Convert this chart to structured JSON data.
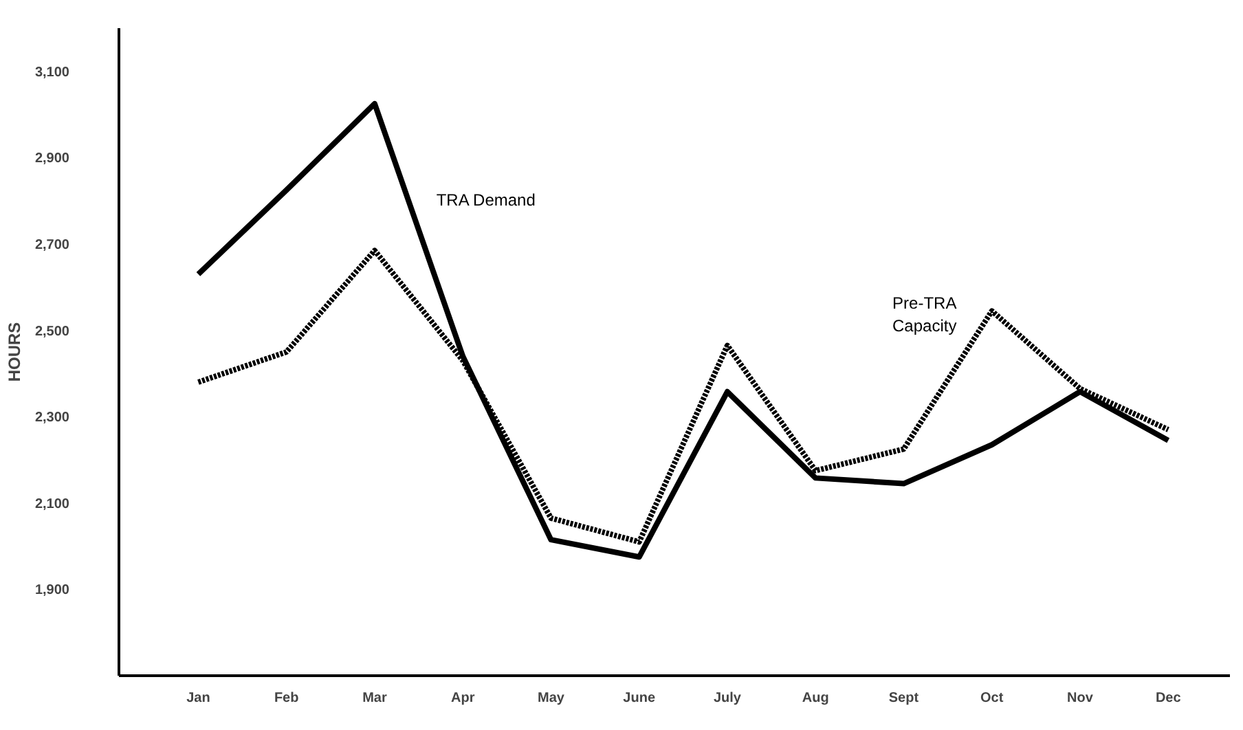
{
  "chart_data": {
    "type": "line",
    "ylabel": "HOURS",
    "categories": [
      "Jan",
      "Feb",
      "Mar",
      "Apr",
      "May",
      "June",
      "July",
      "Aug",
      "Sept",
      "Oct",
      "Nov",
      "Dec"
    ],
    "series": [
      {
        "name": "TRA Demand",
        "color": "#000000",
        "line_style": "solid",
        "values": [
          2630,
          2825,
          3025,
          2440,
          2015,
          1975,
          2358,
          2158,
          2145,
          2235,
          2358,
          2245
        ]
      },
      {
        "name": "Pre-TRA Capacity",
        "color": "#000000",
        "line_style": "dotted",
        "values": [
          2380,
          2450,
          2685,
          2430,
          2065,
          2010,
          2465,
          2175,
          2225,
          2545,
          2365,
          2270
        ]
      }
    ],
    "ylim": [
      1700,
      3200
    ],
    "yticks": [
      {
        "value": 1900,
        "label": "1,900"
      },
      {
        "value": 2100,
        "label": "2,100"
      },
      {
        "value": 2300,
        "label": "2,300"
      },
      {
        "value": 2500,
        "label": "2,500"
      },
      {
        "value": 2700,
        "label": "2,700"
      },
      {
        "value": 2900,
        "label": "2,900"
      },
      {
        "value": 3100,
        "label": "3,100"
      }
    ],
    "grid": false,
    "marker": "none"
  }
}
